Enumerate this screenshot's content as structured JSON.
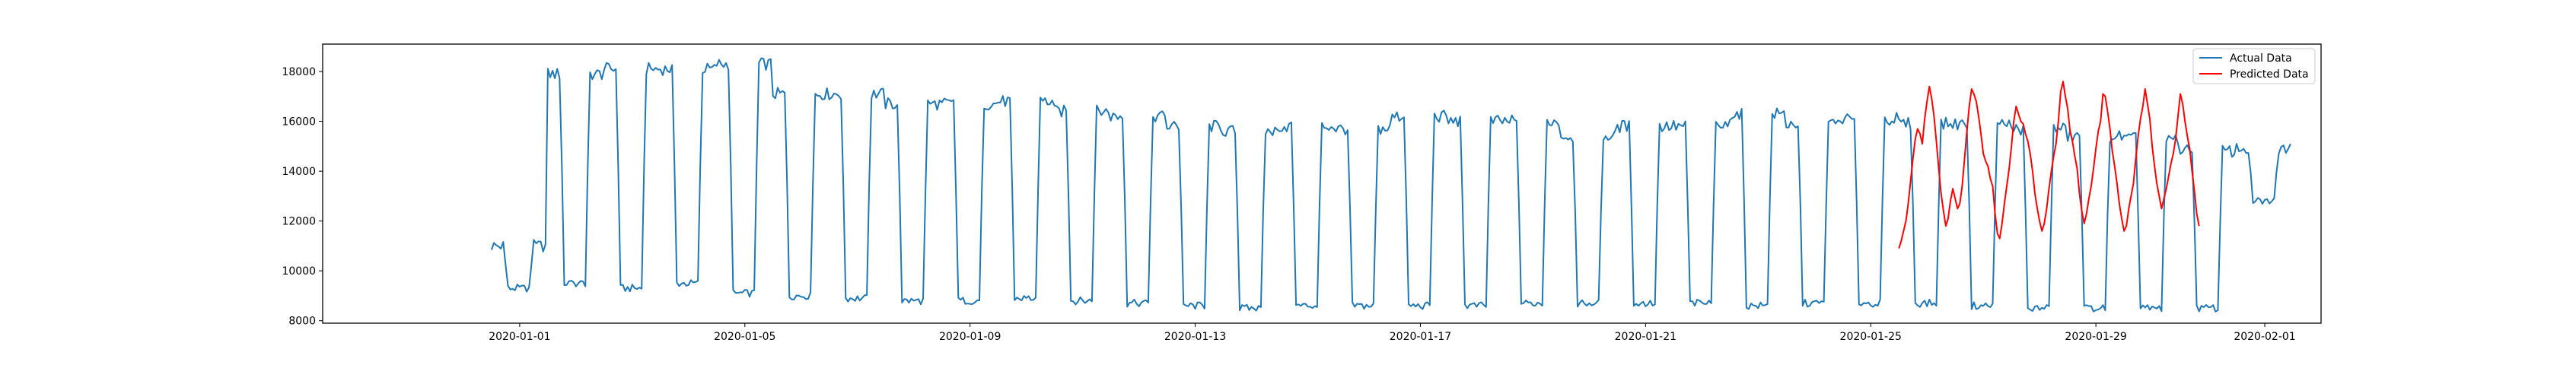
{
  "chart_data": {
    "type": "line",
    "title": "",
    "xlabel": "",
    "ylabel": "",
    "xlim": [
      "2019-12-28T12:00",
      "2020-02-02T00:00"
    ],
    "ylim": [
      7900,
      19100
    ],
    "x_ticks": [
      "2020-01-01",
      "2020-01-05",
      "2020-01-09",
      "2020-01-13",
      "2020-01-17",
      "2020-01-21",
      "2020-01-25",
      "2020-01-29",
      "2020-02-01"
    ],
    "y_ticks": [
      8000,
      10000,
      12000,
      14000,
      16000,
      18000
    ],
    "grid": false,
    "legend_position": "top-right",
    "legend": [
      "Actual Data",
      "Predicted Data"
    ],
    "series": [
      {
        "name": "Actual Data",
        "color": "#1f77b4",
        "start": "2019-12-31T12:00",
        "step_hours": 1,
        "day_start_hour": 12,
        "daily_profile": "weekday office load: level from 06:00 to 17:00, about 9000 overnight",
        "daily_peak": [
          11000,
          17900,
          18100,
          18100,
          18300,
          17100,
          17100,
          16700,
          16700,
          16800,
          16400,
          16200,
          15800,
          15600,
          15800,
          15700,
          16200,
          16000,
          16000,
          15400,
          15800,
          15800,
          16300,
          15900,
          16100,
          15900,
          15900,
          15700,
          15400,
          15300,
          14800,
          14900
        ],
        "daily_trough": [
          9300,
          9500,
          9300,
          9500,
          9100,
          9000,
          8900,
          8800,
          8800,
          8900,
          8800,
          8700,
          8600,
          8500,
          8600,
          8600,
          8600,
          8600,
          8700,
          8700,
          8700,
          8700,
          8600,
          8700,
          8700,
          8700,
          8600,
          8500,
          8500,
          8500,
          8500,
          12800
        ]
      },
      {
        "name": "Predicted Data",
        "color": "#ff0000",
        "start": "2020-01-25T12:00",
        "step_hours": 1,
        "values": [
          10900,
          11200,
          11600,
          12000,
          12700,
          13600,
          14500,
          15300,
          15700,
          15500,
          15100,
          16100,
          16800,
          17400,
          16900,
          16200,
          15200,
          14100,
          13100,
          12400,
          11800,
          12100,
          12800,
          13300,
          12900,
          12500,
          12700,
          13400,
          14500,
          15600,
          16600,
          17300,
          17100,
          16800,
          16200,
          15500,
          14700,
          14400,
          14200,
          13700,
          13400,
          12300,
          11500,
          11300,
          11900,
          12700,
          13400,
          14100,
          15000,
          16000,
          16600,
          16300,
          16000,
          15900,
          15500,
          15200,
          14700,
          14000,
          13100,
          12500,
          12000,
          11600,
          11900,
          12500,
          13300,
          14000,
          14600,
          15100,
          16000,
          17200,
          17600,
          17000,
          16500,
          15600,
          15200,
          14600,
          14100,
          13100,
          12400,
          11900,
          12300,
          12900,
          13400,
          14100,
          14900,
          15600,
          16000,
          17100,
          17000,
          16400,
          15700,
          14800,
          14200,
          13500,
          12700,
          12100,
          11600,
          11800,
          12500,
          13000,
          13500,
          14500,
          15400,
          16100,
          16600,
          17300,
          16700,
          16100,
          15000,
          14200,
          13500,
          13000,
          12500,
          12900,
          13300,
          13800,
          14300,
          14700,
          15300,
          16200,
          17100,
          16700,
          16000,
          15400,
          14900,
          14000,
          13200,
          12300,
          11800
        ]
      }
    ]
  }
}
